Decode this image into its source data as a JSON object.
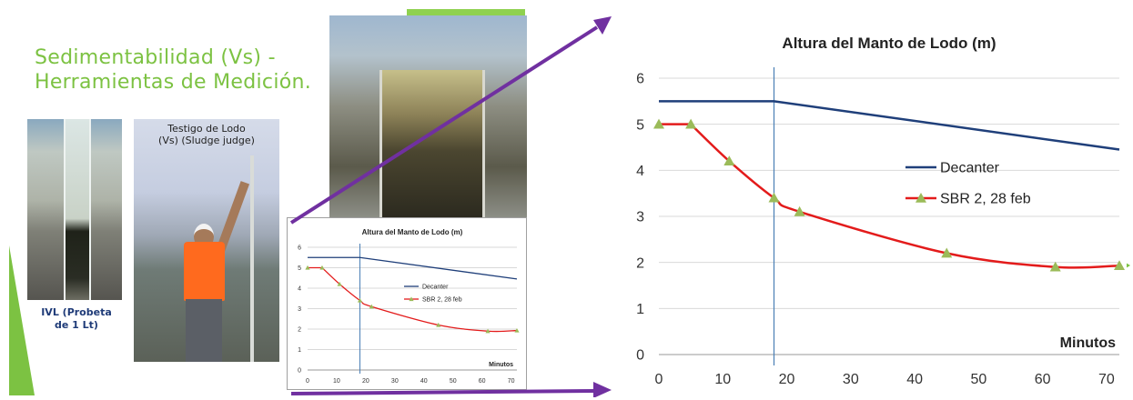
{
  "slide": {
    "title_line1": "Sedimentabilidad (Vs) -",
    "title_line2": "Herramientas de Medición.",
    "photo_cylinder_caption_line1": "IVL (Probeta",
    "photo_cylinder_caption_line2": "de 1 Lt)",
    "photo_worker_caption_line1": "Testigo de Lodo",
    "photo_worker_caption_line2": "(Vs) (Sludge judge)",
    "accent_green": "#7cc242",
    "pointer_purple": "#7030a0"
  },
  "chart_data": [
    {
      "type": "line",
      "title": "Altura del Manto de Lodo (m)",
      "xlabel": "Minutos",
      "ylabel": "",
      "xlim": [
        0,
        72
      ],
      "ylim": [
        0,
        6
      ],
      "xticks": [
        0,
        10,
        20,
        30,
        40,
        50,
        60,
        70
      ],
      "yticks": [
        0,
        1,
        2,
        3,
        4,
        5,
        6
      ],
      "vline_x": 18,
      "legend_position": "center-right",
      "series": [
        {
          "name": "Decanter",
          "color": "#1f3f7a",
          "marker": "none",
          "x": [
            0,
            18,
            72
          ],
          "values": [
            5.5,
            5.5,
            4.45
          ]
        },
        {
          "name": "SBR 2, 28 feb",
          "color": "#e31b1b",
          "marker": "triangle",
          "marker_color": "#9bbb59",
          "x": [
            0,
            5,
            11,
            18,
            22,
            45,
            62,
            72
          ],
          "values": [
            5.0,
            5.0,
            4.2,
            3.4,
            3.1,
            2.2,
            1.9,
            1.93
          ]
        }
      ]
    },
    {
      "type": "line",
      "title": "Altura del Manto de Lodo (m)",
      "xlabel": "Minutos",
      "ylabel": "",
      "xlim": [
        0,
        72
      ],
      "ylim": [
        0,
        6
      ],
      "xticks": [
        0,
        10,
        20,
        30,
        40,
        50,
        60,
        70
      ],
      "yticks": [
        0,
        1,
        2,
        3,
        4,
        5,
        6
      ],
      "vline_x": 18,
      "legend_position": "center-right",
      "series": [
        {
          "name": "Decanter",
          "color": "#1f3f7a",
          "marker": "none",
          "x": [
            0,
            18,
            72
          ],
          "values": [
            5.5,
            5.5,
            4.45
          ]
        },
        {
          "name": "SBR 2, 28 feb",
          "color": "#e31b1b",
          "marker": "triangle",
          "marker_color": "#9bbb59",
          "x": [
            0,
            5,
            11,
            18,
            22,
            45,
            62,
            72
          ],
          "values": [
            5.0,
            5.0,
            4.2,
            3.4,
            3.1,
            2.2,
            1.9,
            1.93
          ]
        }
      ]
    }
  ]
}
